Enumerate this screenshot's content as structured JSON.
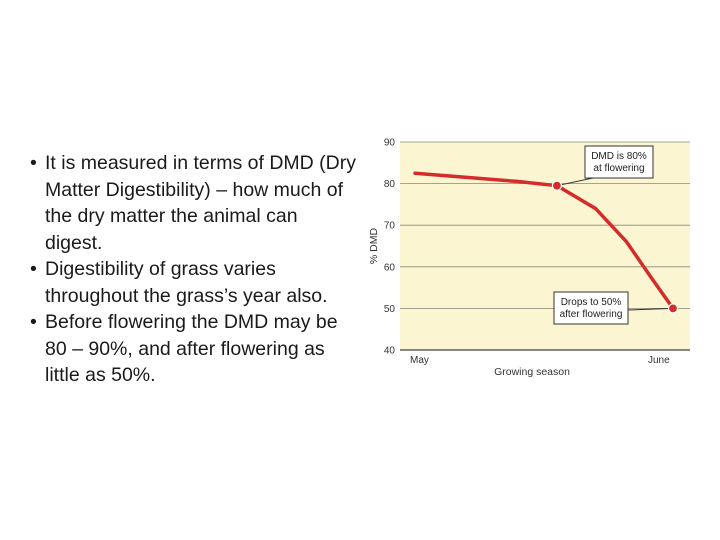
{
  "bullets": [
    "It is measured in terms of DMD (Dry Matter Digestibility) – how much of the dry matter the animal can digest.",
    "Digestibility of grass varies throughout the grass’s year also.",
    "Before flowering the DMD may be 80 – 90%, and after flowering as little as 50%."
  ],
  "chart_data": {
    "type": "line",
    "x_categories": [
      "May",
      "June"
    ],
    "xlabel": "Growing season",
    "ylabel": "% DMD",
    "ylim": [
      40,
      90
    ],
    "yticks": [
      90,
      80,
      70,
      60,
      50,
      40
    ],
    "grid": true,
    "background": "#fbf5d2",
    "series": [
      {
        "color": "#d42b2b",
        "points": [
          {
            "x": 0.0,
            "y": 82.5
          },
          {
            "x": 0.2,
            "y": 81.5
          },
          {
            "x": 0.4,
            "y": 80.5
          },
          {
            "x": 0.55,
            "y": 79.5
          },
          {
            "x": 0.7,
            "y": 74
          },
          {
            "x": 0.82,
            "y": 66
          },
          {
            "x": 0.92,
            "y": 57
          },
          {
            "x": 1.0,
            "y": 50
          }
        ],
        "markers": [
          {
            "x": 0.55,
            "y": 79.5
          },
          {
            "x": 1.0,
            "y": 50
          }
        ]
      }
    ],
    "annotations": [
      {
        "lines": [
          "DMD is 80%",
          "at flowering"
        ],
        "target": {
          "x": 0.55,
          "y": 79.5
        }
      },
      {
        "lines": [
          "Drops to 50%",
          "after flowering"
        ],
        "target": {
          "x": 1.0,
          "y": 50
        }
      }
    ]
  }
}
